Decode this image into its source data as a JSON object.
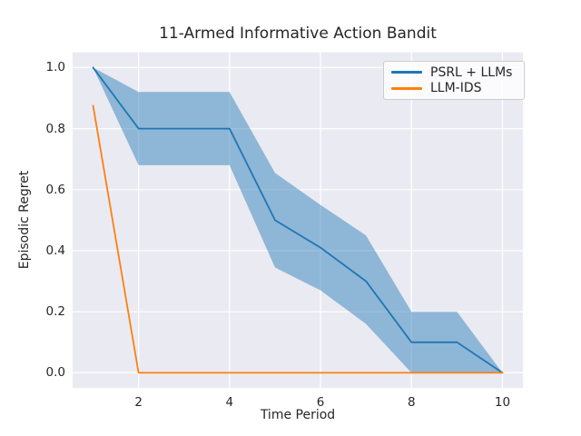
{
  "figure": {
    "background_color": "#ffffff",
    "axes_background_color": "#eaeaf2",
    "grid_color": "#ffffff",
    "text_color": "#262626"
  },
  "chart_data": {
    "type": "line",
    "title": "11-Armed Informative Action Bandit",
    "xlabel": "Time Period",
    "ylabel": "Episodic Regret",
    "x": [
      1,
      2,
      3,
      4,
      5,
      6,
      7,
      8,
      9,
      10
    ],
    "series": [
      {
        "name": "PSRL + LLMs",
        "color": "#1f77b4",
        "values": [
          1.0,
          0.8,
          0.8,
          0.8,
          0.5,
          0.41,
          0.3,
          0.1,
          0.1,
          0.0
        ],
        "band_upper": [
          1.0,
          0.92,
          0.92,
          0.92,
          0.655,
          0.55,
          0.45,
          0.2,
          0.2,
          0.0
        ],
        "band_lower": [
          1.0,
          0.68,
          0.68,
          0.68,
          0.345,
          0.27,
          0.16,
          0.0,
          0.0,
          0.0
        ],
        "band_opacity": 0.45
      },
      {
        "name": "LLM-IDS",
        "color": "#ff7f0e",
        "values": [
          0.875,
          0.0,
          0.0,
          0.0,
          0.0,
          0.0,
          0.0,
          0.0,
          0.0,
          0.0
        ]
      }
    ],
    "x_ticks": [
      2,
      4,
      6,
      8,
      10
    ],
    "y_ticks": [
      0.0,
      0.2,
      0.4,
      0.6,
      0.8,
      1.0
    ],
    "xlim": [
      0.55,
      10.45
    ],
    "ylim": [
      -0.05,
      1.05
    ],
    "grid": true,
    "legend_position": "upper right"
  }
}
